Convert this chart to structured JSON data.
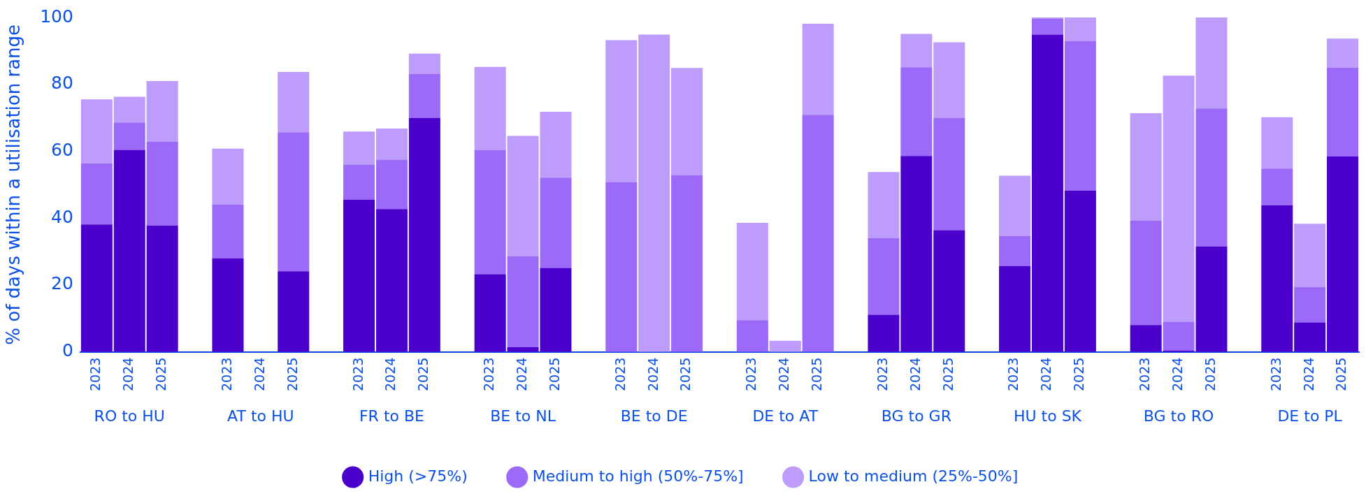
{
  "chart_data": {
    "type": "bar",
    "stacked": true,
    "ylabel": "% of days within a utilisation range",
    "categories": [
      "2023",
      "2024",
      "2025",
      null,
      "2023",
      "2024",
      "2025",
      null,
      "2023",
      "2024",
      "2025",
      null,
      "2023",
      "2024",
      "2025",
      null,
      "2023",
      "2024",
      "2025",
      null,
      "2023",
      "2024",
      "2025",
      null,
      "2023",
      "2024",
      "2025",
      null,
      "2023",
      "2024",
      "2025",
      null,
      "2023",
      "2024",
      "2025",
      null,
      "2023",
      "2024",
      "2025"
    ],
    "annotations": [
      "RO to HU",
      "AT to HU",
      "FR to BE",
      "BE to NL",
      "BE to DE",
      "DE to AT",
      "BG to GR",
      "HU to SK",
      "BG to RO",
      "DE to PL"
    ],
    "series": [
      {
        "name": "High (>75%)",
        "color": "#4b00cc",
        "values": [
          38.1,
          60.4,
          37.8,
          null,
          28.0,
          0,
          24.1,
          null,
          45.5,
          42.7,
          69.9,
          null,
          23.2,
          1.4,
          25.1,
          null,
          0,
          0,
          0,
          null,
          0,
          0,
          0,
          null,
          11.1,
          58.6,
          36.4,
          null,
          25.7,
          94.9,
          48.2,
          null,
          8.0,
          0.4,
          31.5,
          null,
          43.8,
          8.8,
          58.4
        ]
      },
      {
        "name": "Medium to high (50%-75%]",
        "color": "#9b6af9",
        "values": [
          18.3,
          8.2,
          25.1,
          null,
          16.1,
          0,
          41.6,
          null,
          10.4,
          14.7,
          13.2,
          null,
          37.2,
          27.2,
          27.0,
          null,
          50.8,
          0,
          52.9,
          null,
          9.5,
          0,
          70.9,
          null,
          22.9,
          26.5,
          33.5,
          null,
          8.9,
          4.7,
          44.7,
          null,
          31.3,
          8.6,
          41.3,
          null,
          11.0,
          10.6,
          26.6
        ]
      },
      {
        "name": "Low to medium (25%-50%]",
        "color": "#bd9cfb",
        "values": [
          19.1,
          7.7,
          18.1,
          null,
          16.7,
          0,
          18.0,
          null,
          10.0,
          9.4,
          6.1,
          null,
          24.8,
          36.0,
          19.7,
          null,
          42.4,
          94.9,
          32.0,
          null,
          29.1,
          3.3,
          27.2,
          null,
          19.8,
          10.0,
          22.7,
          null,
          18.1,
          0.4,
          7.1,
          null,
          32.1,
          73.6,
          27.2,
          null,
          15.4,
          18.9,
          8.7
        ]
      }
    ],
    "ylim": [
      0,
      100
    ],
    "yticks": [
      0,
      20,
      40,
      60,
      80,
      100
    ],
    "grid": false,
    "legend": "bottom"
  }
}
